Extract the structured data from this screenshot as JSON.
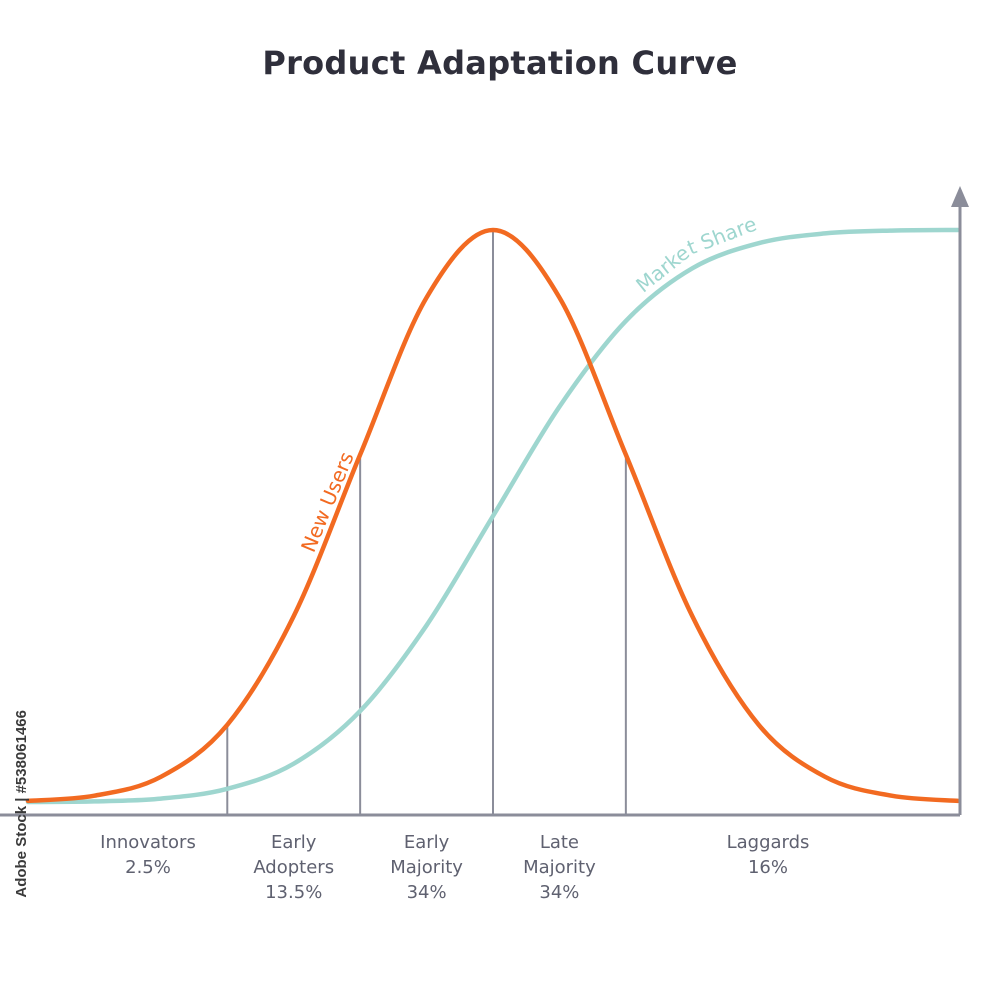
{
  "colors": {
    "market_share": "#9ed6cf",
    "new_users": "#f26a21",
    "axis": "#8b8d9a",
    "divider": "#8b8d9a",
    "category_text": "#5f6170",
    "title_text": "#2f2f3b"
  },
  "watermark": {
    "text": "Adobe Stock | #538061466"
  },
  "chart_data": {
    "type": "line",
    "title": "Product Adaptation Curve",
    "xlabel": "",
    "ylabel": "",
    "grid": false,
    "legend": "none",
    "x_range": [
      -3.5,
      3.5
    ],
    "y_range": [
      0,
      100
    ],
    "series": [
      {
        "name": "Market Share",
        "color_key": "market_share",
        "curve": "cumulative adoption (S-curve)",
        "x": [
          -3.5,
          -3.0,
          -2.5,
          -2.0,
          -1.5,
          -1.0,
          -0.5,
          0.0,
          0.5,
          1.0,
          1.5,
          2.0,
          2.5,
          3.0,
          3.5
        ],
        "y": [
          0.0,
          0.1,
          0.6,
          2.3,
          6.7,
          15.9,
          30.9,
          50.0,
          69.1,
          84.1,
          93.3,
          97.7,
          99.4,
          99.9,
          100.0
        ]
      },
      {
        "name": "New Users",
        "color_key": "new_users",
        "curve": "adoption rate (bell curve)",
        "x": [
          -3.5,
          -3.0,
          -2.5,
          -2.0,
          -1.5,
          -1.0,
          -0.5,
          0.0,
          0.5,
          1.0,
          1.5,
          2.0,
          2.5,
          3.0,
          3.5
        ],
        "y": [
          0.2,
          1.1,
          4.4,
          13.5,
          32.5,
          60.7,
          88.2,
          100.0,
          88.2,
          60.7,
          32.5,
          13.5,
          4.4,
          1.1,
          0.2
        ]
      }
    ],
    "dividers_x": [
      -2,
      -1,
      0,
      1
    ],
    "segments": [
      {
        "name": "Innovators",
        "lines": [
          "Innovators",
          "2.5%"
        ],
        "from": -3.5,
        "to": -2,
        "percent": 2.5
      },
      {
        "name": "Early Adopters",
        "lines": [
          "Early",
          "Adopters",
          "13.5%"
        ],
        "from": -2,
        "to": -1,
        "percent": 13.5
      },
      {
        "name": "Early Majority",
        "lines": [
          "Early",
          "Majority",
          "34%"
        ],
        "from": -1,
        "to": 0,
        "percent": 34
      },
      {
        "name": "Late Majority",
        "lines": [
          "Late",
          "Majority",
          "34%"
        ],
        "from": 0,
        "to": 1,
        "percent": 34
      },
      {
        "name": "Laggards",
        "lines": [
          "Laggards",
          "16%"
        ],
        "from": 1,
        "to": 3.5,
        "percent": 16
      }
    ]
  }
}
